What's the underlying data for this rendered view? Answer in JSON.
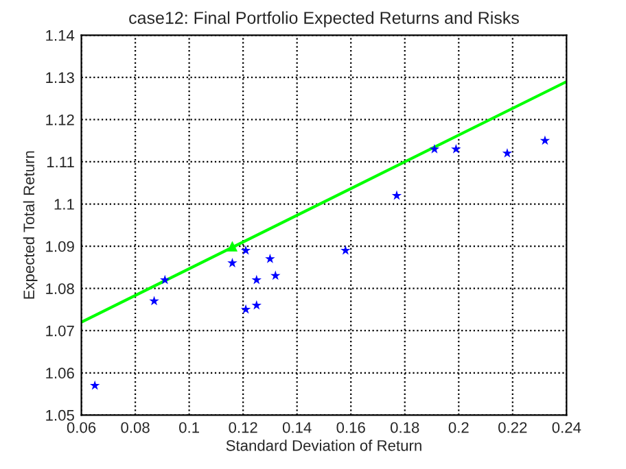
{
  "chart_data": {
    "type": "scatter",
    "title": "case12: Final Portfolio Expected Returns and Risks",
    "xlabel": "Standard Deviation of Return",
    "ylabel": "Expected Total Return",
    "xlim": [
      0.06,
      0.24
    ],
    "ylim": [
      1.05,
      1.14
    ],
    "xticks": [
      0.06,
      0.08,
      0.1,
      0.12,
      0.14,
      0.16,
      0.18,
      0.2,
      0.22,
      0.24
    ],
    "yticks": [
      1.05,
      1.06,
      1.07,
      1.08,
      1.09,
      1.1,
      1.11,
      1.12,
      1.13,
      1.14
    ],
    "grid": true,
    "series": [
      {
        "marker": "star",
        "color": "#0000ff",
        "x": [
          0.065,
          0.087,
          0.091,
          0.116,
          0.121,
          0.121,
          0.125,
          0.125,
          0.13,
          0.132,
          0.158,
          0.177,
          0.191,
          0.199,
          0.218,
          0.232
        ],
        "values": [
          1.057,
          1.077,
          1.082,
          1.086,
          1.089,
          1.075,
          1.082,
          1.076,
          1.087,
          1.083,
          1.089,
          1.102,
          1.113,
          1.113,
          1.112,
          1.115
        ]
      },
      {
        "type": "line",
        "marker": "none",
        "color": "#00ff00",
        "x": [
          0.06,
          0.24
        ],
        "values": [
          1.072,
          1.129
        ]
      },
      {
        "marker": "triangle",
        "color": "#00ff00",
        "x": [
          0.116
        ],
        "values": [
          1.09
        ]
      }
    ]
  }
}
